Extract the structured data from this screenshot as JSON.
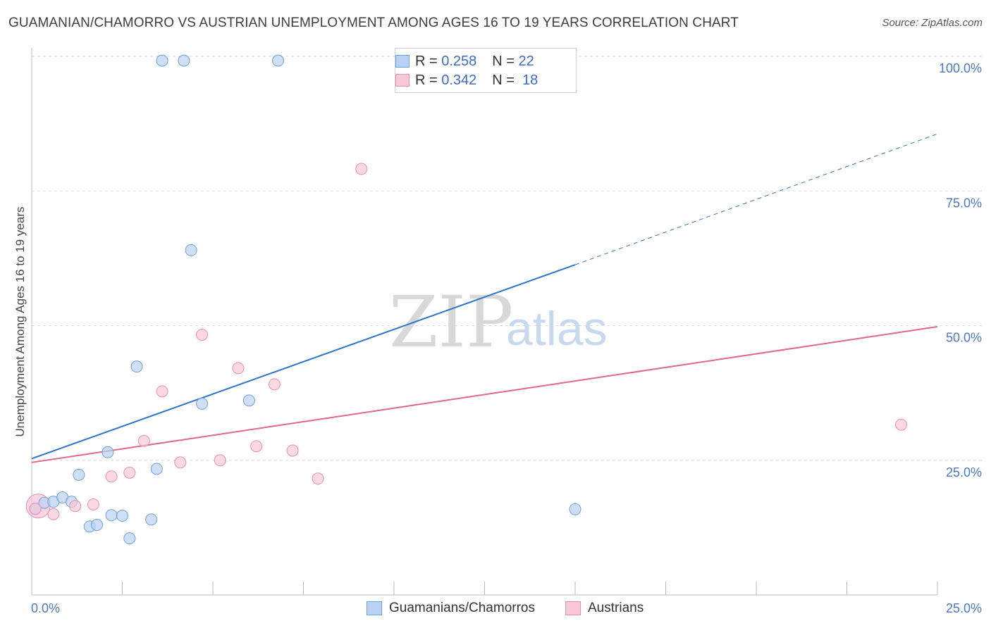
{
  "header": {
    "title": "GUAMANIAN/CHAMORRO VS AUSTRIAN UNEMPLOYMENT AMONG AGES 16 TO 19 YEARS CORRELATION CHART",
    "source": "Source: ZipAtlas.com"
  },
  "watermark": {
    "zip": "ZIP",
    "atlas": "atlas"
  },
  "legend": {
    "r_label": "R =",
    "n_label": "N =",
    "series": [
      {
        "r": "0.258",
        "n": "22"
      },
      {
        "r": "0.342",
        "n": "18"
      }
    ]
  },
  "colors": {
    "blue_fill": "#b9d2f2",
    "blue_stroke": "#6e9fd9",
    "blue_line": "#2f73d0",
    "pink_fill": "#f8c8d8",
    "pink_stroke": "#e391ad",
    "pink_line": "#e26690",
    "grid": "#dcdcdc",
    "axis_text": "#4a78c4"
  },
  "chart_data": {
    "type": "scatter",
    "title": "GUAMANIAN/CHAMORRO VS AUSTRIAN UNEMPLOYMENT AMONG AGES 16 TO 19 YEARS CORRELATION CHART",
    "xlabel": "",
    "ylabel": "Unemployment Among Ages 16 to 19 years",
    "xlim": [
      0,
      25
    ],
    "ylim": [
      0,
      100
    ],
    "x_tick_labels": [
      "0.0%",
      "25.0%"
    ],
    "y_ticks": [
      25,
      50,
      75,
      100
    ],
    "y_tick_labels": [
      "25.0%",
      "50.0%",
      "75.0%",
      "100.0%"
    ],
    "grid": true,
    "legend_position": "top-center",
    "series": [
      {
        "name": "Guamanians/Chamorros",
        "r": 0.258,
        "n": 22,
        "points": [
          {
            "x": 0.1,
            "y": 16.0
          },
          {
            "x": 0.35,
            "y": 17.1
          },
          {
            "x": 0.6,
            "y": 17.3
          },
          {
            "x": 0.85,
            "y": 18.1
          },
          {
            "x": 1.1,
            "y": 17.3
          },
          {
            "x": 1.3,
            "y": 22.3
          },
          {
            "x": 1.6,
            "y": 12.7
          },
          {
            "x": 1.8,
            "y": 13.0
          },
          {
            "x": 2.1,
            "y": 26.5
          },
          {
            "x": 2.2,
            "y": 14.8
          },
          {
            "x": 2.5,
            "y": 14.7
          },
          {
            "x": 2.7,
            "y": 10.5
          },
          {
            "x": 2.9,
            "y": 42.4
          },
          {
            "x": 3.3,
            "y": 14.0
          },
          {
            "x": 3.45,
            "y": 23.4
          },
          {
            "x": 3.6,
            "y": 99.2
          },
          {
            "x": 4.2,
            "y": 99.2
          },
          {
            "x": 4.4,
            "y": 64.0
          },
          {
            "x": 4.7,
            "y": 35.5
          },
          {
            "x": 6.0,
            "y": 36.1
          },
          {
            "x": 6.8,
            "y": 99.2
          },
          {
            "x": 15.0,
            "y": 15.9
          }
        ],
        "trend": {
          "x0": 0,
          "y0": 25.3,
          "x1": 15.0,
          "y1": 61.3,
          "dashed_to_x": 25.0,
          "dashed_to_y": 85.6
        }
      },
      {
        "name": "Austrians",
        "r": 0.342,
        "n": 18,
        "points": [
          {
            "x": 0.1,
            "y": 16.0
          },
          {
            "x": 0.6,
            "y": 15.0
          },
          {
            "x": 1.2,
            "y": 16.5
          },
          {
            "x": 1.7,
            "y": 16.8
          },
          {
            "x": 2.2,
            "y": 22.0
          },
          {
            "x": 2.7,
            "y": 22.7
          },
          {
            "x": 3.1,
            "y": 28.6
          },
          {
            "x": 3.6,
            "y": 37.8
          },
          {
            "x": 4.1,
            "y": 24.6
          },
          {
            "x": 4.7,
            "y": 48.3
          },
          {
            "x": 5.2,
            "y": 25.0
          },
          {
            "x": 5.7,
            "y": 42.1
          },
          {
            "x": 6.2,
            "y": 27.6
          },
          {
            "x": 6.7,
            "y": 39.1
          },
          {
            "x": 7.2,
            "y": 26.8
          },
          {
            "x": 7.9,
            "y": 21.6
          },
          {
            "x": 9.1,
            "y": 79.1
          },
          {
            "x": 24.0,
            "y": 31.6
          }
        ],
        "trend": {
          "x0": 0,
          "y0": 24.6,
          "x1": 25.0,
          "y1": 49.8
        }
      }
    ]
  }
}
